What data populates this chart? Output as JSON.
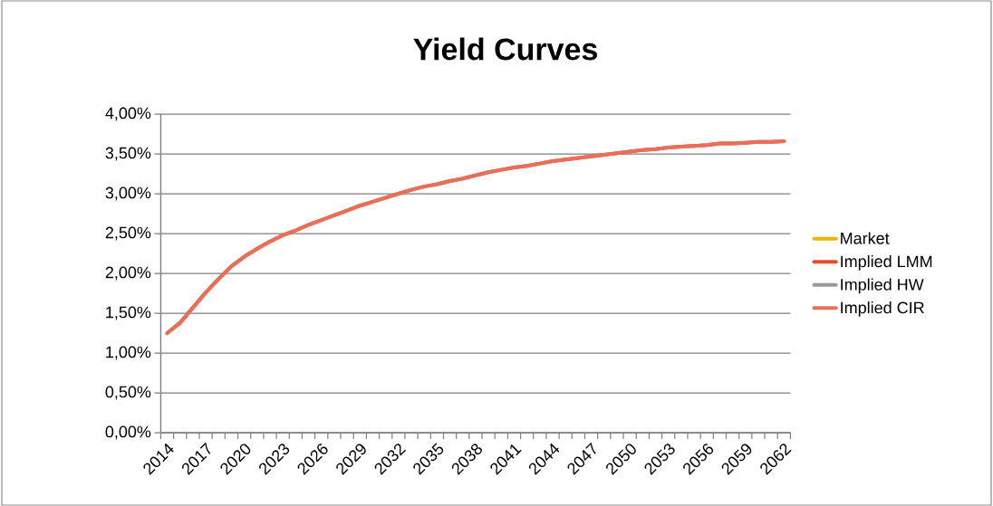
{
  "chart_data": {
    "type": "line",
    "title": "Yield Curves",
    "categories": [
      "2014",
      null,
      null,
      "2017",
      null,
      null,
      "2020",
      null,
      null,
      "2023",
      null,
      null,
      "2026",
      null,
      null,
      "2029",
      null,
      null,
      "2032",
      null,
      null,
      "2035",
      null,
      null,
      "2038",
      null,
      null,
      "2041",
      null,
      null,
      "2044",
      null,
      null,
      "2047",
      null,
      null,
      "2050",
      null,
      null,
      "2053",
      null,
      null,
      "2056",
      null,
      null,
      "2059",
      null,
      null,
      "2062"
    ],
    "series": [
      {
        "name": "Market",
        "color": "#f0b400",
        "values": [
          null,
          null,
          null,
          null,
          null,
          null,
          null,
          null,
          null,
          null,
          null,
          null,
          null,
          null,
          null,
          null,
          null,
          null,
          null,
          null,
          null,
          null,
          null,
          null,
          null,
          null,
          null,
          null,
          null,
          null,
          null,
          null,
          null,
          null,
          null,
          null,
          null,
          null,
          null,
          null,
          null,
          null,
          null,
          null,
          null,
          null,
          null,
          null,
          null
        ]
      },
      {
        "name": "Implied LMM",
        "color": "#e84c2b",
        "values": [
          1.25,
          1.38,
          1.57,
          1.76,
          1.93,
          2.09,
          2.21,
          2.31,
          2.4,
          2.48,
          2.54,
          2.61,
          2.67,
          2.73,
          2.79,
          2.85,
          2.9,
          2.95,
          3.0,
          3.05,
          3.09,
          3.12,
          3.16,
          3.19,
          3.23,
          3.27,
          3.3,
          3.33,
          3.35,
          3.38,
          3.41,
          3.43,
          3.45,
          3.47,
          3.49,
          3.51,
          3.53,
          3.55,
          3.56,
          3.58,
          3.59,
          3.6,
          3.61,
          3.63,
          3.63,
          3.64,
          3.65,
          3.65,
          3.66
        ]
      },
      {
        "name": "Implied HW",
        "color": "#999999",
        "values": [
          null,
          null,
          null,
          null,
          null,
          null,
          null,
          null,
          null,
          null,
          null,
          null,
          null,
          null,
          null,
          null,
          null,
          null,
          null,
          null,
          null,
          null,
          null,
          null,
          null,
          null,
          null,
          null,
          null,
          null,
          null,
          null,
          null,
          null,
          null,
          null,
          null,
          null,
          null,
          null,
          null,
          null,
          null,
          null,
          null,
          null,
          null,
          null,
          null
        ]
      },
      {
        "name": "Implied CIR",
        "color": "#e8705a",
        "values": [
          1.25,
          1.38,
          1.57,
          1.76,
          1.93,
          2.09,
          2.21,
          2.31,
          2.4,
          2.48,
          2.54,
          2.61,
          2.67,
          2.73,
          2.79,
          2.85,
          2.9,
          2.95,
          3.0,
          3.05,
          3.09,
          3.12,
          3.16,
          3.19,
          3.23,
          3.27,
          3.3,
          3.33,
          3.35,
          3.38,
          3.41,
          3.43,
          3.45,
          3.47,
          3.49,
          3.51,
          3.53,
          3.55,
          3.56,
          3.58,
          3.59,
          3.6,
          3.61,
          3.63,
          3.63,
          3.64,
          3.65,
          3.65,
          3.66
        ]
      }
    ],
    "ylim": [
      0,
      4
    ],
    "yticks": [
      {
        "value": 0,
        "label": "0,00%"
      },
      {
        "value": 0.5,
        "label": "0,50%"
      },
      {
        "value": 1,
        "label": "1,00%"
      },
      {
        "value": 1.5,
        "label": "1,50%"
      },
      {
        "value": 2,
        "label": "2,00%"
      },
      {
        "value": 2.5,
        "label": "2,50%"
      },
      {
        "value": 3,
        "label": "3,00%"
      },
      {
        "value": 3.5,
        "label": "3,50%"
      },
      {
        "value": 4,
        "label": "4,00%"
      }
    ],
    "grid": "y",
    "legend": "right",
    "marker": "none",
    "line_style": "solid"
  }
}
